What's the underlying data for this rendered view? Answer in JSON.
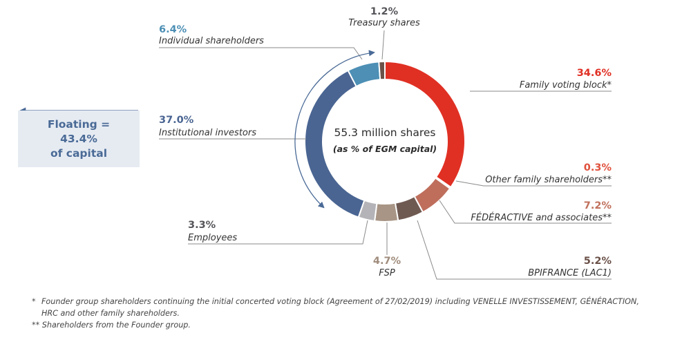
{
  "chart_data": {
    "type": "pie",
    "center_title": "55.3 million shares",
    "center_subtitle": "(as % of EGM capital)",
    "slices": [
      {
        "label": "Family voting block*",
        "value": 34.6,
        "value_label": "34.6%",
        "color": "#e03024",
        "label_color": "#e03024"
      },
      {
        "label": "Other family shareholders**",
        "value": 0.3,
        "value_label": "0.3%",
        "color": "#ea8d80",
        "label_color": "#e0503c"
      },
      {
        "label": "FÉDÉRACTIVE and associates**",
        "value": 7.2,
        "value_label": "7.2%",
        "color": "#bf6e5c",
        "label_color": "#c0705c"
      },
      {
        "label": "BPIFRANCE (LAC1)",
        "value": 5.2,
        "value_label": "5.2%",
        "color": "#6f5a52",
        "label_color": "#6a5048"
      },
      {
        "label": "FSP",
        "value": 4.7,
        "value_label": "4.7%",
        "color": "#a89585",
        "label_color": "#a08c7c"
      },
      {
        "label": "Employees",
        "value": 3.3,
        "value_label": "3.3%",
        "color": "#b4b4b8",
        "label_color": "#55555a"
      },
      {
        "label": "Institutional investors",
        "value": 37.0,
        "value_label": "37.0%",
        "color": "#4a6592",
        "label_color": "#4a6592"
      },
      {
        "label": "Individual shareholders",
        "value": 6.4,
        "value_label": "6.4%",
        "color": "#4d8fb5",
        "label_color": "#4d8fb5"
      },
      {
        "label": "Treasury shares",
        "value": 1.2,
        "value_label": "1.2%",
        "color": "#6b5148",
        "label_color": "#55555a"
      }
    ],
    "floating": {
      "line1": "Floating =",
      "line2": "43.4%",
      "line3": "of capital"
    },
    "colors": {
      "arrow": "#4a6a96",
      "leader": "#8a8a8a"
    }
  },
  "footnotes": [
    {
      "mark": "*",
      "text": "Founder group shareholders continuing the initial concerted voting block (Agreement of 27/02/2019) including VENELLE INVESTISSEMENT, GÉNÉRACTION, HRC and other family shareholders."
    },
    {
      "mark": "**",
      "text": "Shareholders from the Founder group."
    }
  ]
}
